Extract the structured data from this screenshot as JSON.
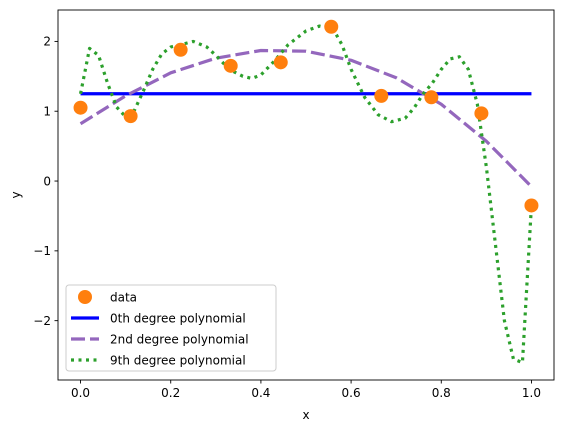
{
  "chart_data": {
    "type": "line",
    "title": "",
    "xlabel": "x",
    "ylabel": "y",
    "xlim": [
      -0.05,
      1.05
    ],
    "ylim": [
      -2.85,
      2.45
    ],
    "xticks": [
      0.0,
      0.2,
      0.4,
      0.6,
      0.8,
      1.0
    ],
    "xtick_labels": [
      "0.0",
      "0.2",
      "0.4",
      "0.6",
      "0.8",
      "1.0"
    ],
    "yticks": [
      -2,
      -1,
      0,
      1,
      2
    ],
    "ytick_labels": [
      "−2",
      "−1",
      "0",
      "1",
      "2"
    ],
    "grid": false,
    "legend_position": "lower-left",
    "scatter": {
      "name": "data",
      "color": "#ff7f0e",
      "x": [
        0.0,
        0.111,
        0.222,
        0.333,
        0.444,
        0.556,
        0.667,
        0.778,
        0.889,
        1.0
      ],
      "y": [
        1.05,
        0.93,
        1.88,
        1.65,
        1.7,
        2.21,
        1.22,
        1.2,
        0.97,
        -0.35
      ]
    },
    "series": [
      {
        "name": "0th degree polynomial",
        "color": "#0000ff",
        "dash": "solid",
        "x": [
          0.0,
          1.0
        ],
        "y": [
          1.25,
          1.25
        ]
      },
      {
        "name": "2nd degree polynomial",
        "color": "#9467bd",
        "dash": "dashed",
        "x": [
          0.0,
          0.1,
          0.2,
          0.3,
          0.4,
          0.5,
          0.6,
          0.7,
          0.8,
          0.9,
          1.0
        ],
        "y": [
          0.82,
          1.22,
          1.55,
          1.76,
          1.87,
          1.86,
          1.73,
          1.48,
          1.1,
          0.57,
          -0.08
        ]
      },
      {
        "name": "9th degree polynomial",
        "color": "#2ca02c",
        "dash": "dotted",
        "x": [
          0.0,
          0.02,
          0.04,
          0.06,
          0.08,
          0.1,
          0.12,
          0.14,
          0.16,
          0.18,
          0.2,
          0.22,
          0.25,
          0.28,
          0.3,
          0.33,
          0.36,
          0.38,
          0.4,
          0.43,
          0.46,
          0.5,
          0.53,
          0.56,
          0.58,
          0.6,
          0.63,
          0.66,
          0.69,
          0.72,
          0.74,
          0.76,
          0.78,
          0.8,
          0.82,
          0.84,
          0.86,
          0.88,
          0.9,
          0.92,
          0.94,
          0.96,
          0.98,
          1.0
        ],
        "y": [
          1.25,
          1.9,
          1.8,
          1.4,
          1.06,
          0.92,
          1.02,
          1.3,
          1.6,
          1.82,
          1.92,
          1.95,
          2.0,
          1.92,
          1.8,
          1.6,
          1.5,
          1.47,
          1.52,
          1.72,
          1.95,
          2.15,
          2.22,
          2.18,
          1.95,
          1.6,
          1.2,
          0.95,
          0.85,
          0.9,
          1.05,
          1.25,
          1.4,
          1.6,
          1.75,
          1.78,
          1.6,
          1.1,
          0.2,
          -0.9,
          -2.0,
          -2.55,
          -2.6,
          -0.35
        ]
      }
    ]
  }
}
